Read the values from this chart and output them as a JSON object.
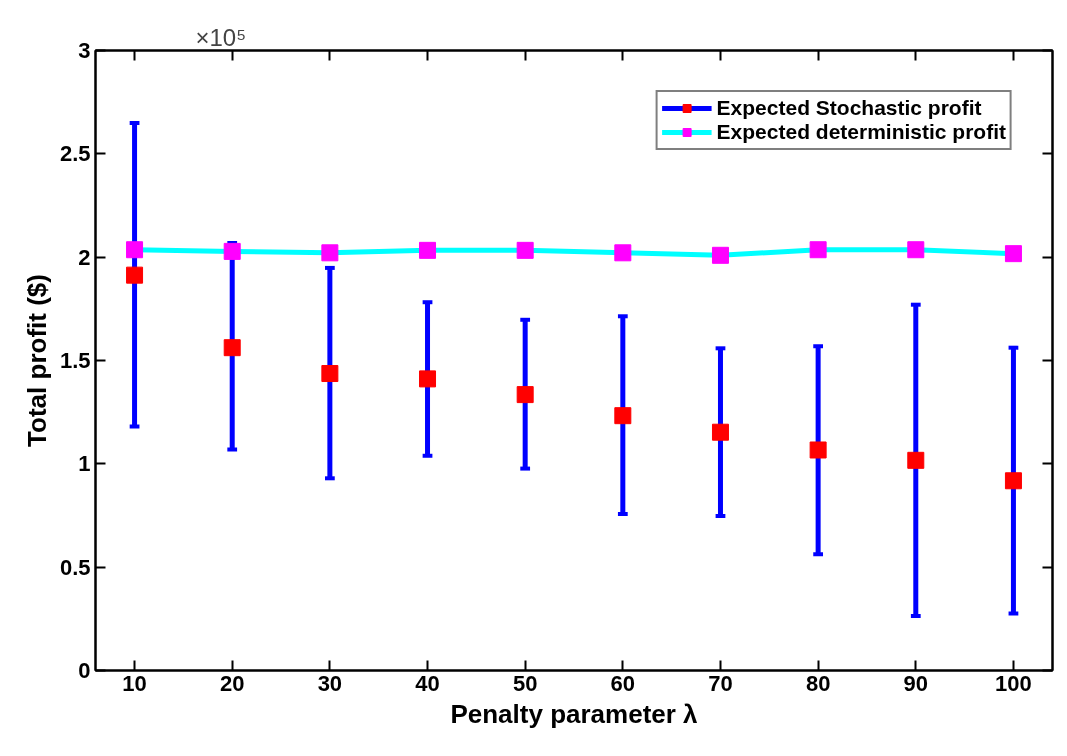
{
  "chart_data": {
    "type": "scatter",
    "xlabel": "Penalty parameter λ",
    "ylabel": "Total profit ($)",
    "x": [
      10,
      20,
      30,
      40,
      50,
      60,
      70,
      80,
      90,
      100
    ],
    "xlim": [
      6,
      104
    ],
    "xticks": [
      10,
      20,
      30,
      40,
      50,
      60,
      70,
      80,
      90,
      100
    ],
    "ylim": [
      0,
      3
    ],
    "yticks": [
      0,
      0.5,
      1,
      1.5,
      2,
      2.5,
      3
    ],
    "annotations": [
      "×10⁵"
    ],
    "grid": false,
    "legend": "top right",
    "marker": "square",
    "line_style": "solid",
    "series": [
      {
        "name": "Expected Stochastic profit",
        "color": "#ff0000",
        "values": [
          1.913,
          1.562,
          1.437,
          1.411,
          1.335,
          1.233,
          1.153,
          1.067,
          1.017,
          0.918
        ],
        "errors": [
          [
            1.181,
            2.649
          ],
          [
            1.069,
            2.069
          ],
          [
            0.93,
            1.948
          ],
          [
            1.039,
            1.782
          ],
          [
            0.977,
            1.697
          ],
          [
            0.757,
            1.714
          ],
          [
            0.748,
            1.559
          ],
          [
            0.563,
            1.569
          ],
          [
            0.264,
            1.77
          ],
          [
            0.276,
            1.562
          ]
        ]
      },
      {
        "name": "Expected deterministic profit",
        "type": "line",
        "color": "#00ffff",
        "values": [
          2.036,
          2.028,
          2.021,
          2.033,
          2.033,
          2.021,
          2.009,
          2.036,
          2.036,
          2.017
        ]
      }
    ]
  }
}
